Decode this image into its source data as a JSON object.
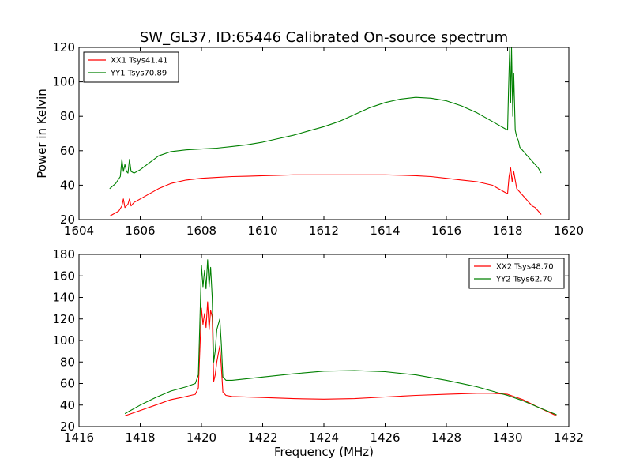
{
  "figure": {
    "title": "SW_GL37, ID:65446 Calibrated On-source spectrum",
    "ylabel": "Power in Kelvin",
    "xlabel": "Frequency (MHz)"
  },
  "colors": {
    "xx": "#ff0000",
    "yy": "#008000"
  },
  "chart_data": [
    {
      "type": "line",
      "title": "SW_GL37, ID:65446 Calibrated On-source spectrum",
      "xlabel": "",
      "ylabel": "Power in Kelvin",
      "xlim": [
        1604,
        1620
      ],
      "ylim": [
        20,
        120
      ],
      "xticks": [
        1604,
        1606,
        1608,
        1610,
        1612,
        1614,
        1616,
        1618,
        1620
      ],
      "yticks": [
        20,
        40,
        60,
        80,
        100,
        120
      ],
      "grid": false,
      "legend_position": "top-left",
      "series": [
        {
          "name": "XX1 Tsys41.41",
          "color": "#ff0000",
          "x": [
            1605.0,
            1605.3,
            1605.4,
            1605.45,
            1605.5,
            1605.6,
            1605.65,
            1605.7,
            1605.8,
            1606.0,
            1606.3,
            1606.6,
            1607.0,
            1607.5,
            1608.0,
            1608.5,
            1609.0,
            1609.5,
            1610.0,
            1610.5,
            1611.0,
            1611.5,
            1612.0,
            1612.5,
            1613.0,
            1613.5,
            1614.0,
            1614.5,
            1615.0,
            1615.5,
            1616.0,
            1616.5,
            1617.0,
            1617.5,
            1617.9,
            1618.0,
            1618.05,
            1618.1,
            1618.15,
            1618.2,
            1618.3,
            1618.4,
            1618.5,
            1618.6,
            1618.7,
            1618.8,
            1618.9,
            1619.0,
            1619.1
          ],
          "y": [
            22,
            25,
            28,
            32,
            27,
            29,
            32,
            28,
            30,
            32,
            35,
            38,
            41,
            43,
            44,
            44.5,
            45,
            45.2,
            45.5,
            45.7,
            46,
            46,
            46,
            46,
            46,
            46,
            46,
            45.8,
            45.5,
            45,
            44,
            43,
            42,
            40,
            36,
            35,
            45,
            50,
            42,
            48,
            38,
            36,
            34,
            32,
            30,
            28,
            27,
            25,
            23
          ]
        },
        {
          "name": "YY1 Tsys70.89",
          "color": "#008000",
          "x": [
            1605.0,
            1605.2,
            1605.35,
            1605.4,
            1605.45,
            1605.5,
            1605.55,
            1605.6,
            1605.65,
            1605.7,
            1605.8,
            1606.0,
            1606.3,
            1606.6,
            1607.0,
            1607.5,
            1608.0,
            1608.5,
            1609.0,
            1609.5,
            1610.0,
            1610.5,
            1611.0,
            1611.5,
            1612.0,
            1612.5,
            1613.0,
            1613.5,
            1614.0,
            1614.5,
            1615.0,
            1615.5,
            1616.0,
            1616.5,
            1617.0,
            1617.5,
            1617.9,
            1618.0,
            1618.03,
            1618.07,
            1618.1,
            1618.13,
            1618.17,
            1618.2,
            1618.25,
            1618.3,
            1618.35,
            1618.4,
            1618.5,
            1618.6,
            1618.7,
            1618.8,
            1618.9,
            1619.0,
            1619.1
          ],
          "y": [
            38,
            41,
            45,
            55,
            48,
            52,
            48,
            47,
            55,
            48,
            47,
            49,
            53,
            57,
            59.5,
            60.5,
            61,
            61.5,
            62.5,
            63.5,
            65,
            67,
            69,
            71.5,
            74,
            77,
            81,
            85,
            88,
            90,
            91,
            90.5,
            89,
            86,
            82,
            77,
            73,
            72,
            95,
            120,
            88,
            120,
            80,
            105,
            72,
            68,
            66,
            62,
            60,
            58,
            56,
            54,
            52,
            50,
            47
          ]
        }
      ]
    },
    {
      "type": "line",
      "title": "",
      "xlabel": "Frequency (MHz)",
      "ylabel": "",
      "xlim": [
        1416,
        1432
      ],
      "ylim": [
        20,
        180
      ],
      "xticks": [
        1416,
        1418,
        1420,
        1422,
        1424,
        1426,
        1428,
        1430,
        1432
      ],
      "yticks": [
        20,
        40,
        60,
        80,
        100,
        120,
        140,
        160,
        180
      ],
      "grid": false,
      "legend_position": "top-right",
      "series": [
        {
          "name": "XX2 Tsys48.70",
          "color": "#ff0000",
          "x": [
            1417.5,
            1418.0,
            1418.5,
            1419.0,
            1419.5,
            1419.8,
            1419.9,
            1420.0,
            1420.05,
            1420.1,
            1420.15,
            1420.2,
            1420.25,
            1420.3,
            1420.35,
            1420.4,
            1420.45,
            1420.5,
            1420.6,
            1420.65,
            1420.7,
            1420.8,
            1421.0,
            1422.0,
            1423.0,
            1424.0,
            1425.0,
            1426.0,
            1427.0,
            1428.0,
            1429.0,
            1429.5,
            1430.0,
            1430.5,
            1431.0,
            1431.6
          ],
          "y": [
            30,
            35,
            40,
            45,
            48,
            50,
            56,
            130,
            115,
            125,
            112,
            136,
            110,
            128,
            122,
            62,
            68,
            80,
            95,
            75,
            52,
            49,
            48,
            47,
            46,
            45.5,
            46,
            47.5,
            49,
            50,
            51,
            51,
            50,
            45,
            38,
            30
          ]
        },
        {
          "name": "YY2 Tsys62.70",
          "color": "#008000",
          "x": [
            1417.5,
            1418.0,
            1418.5,
            1419.0,
            1419.5,
            1419.8,
            1419.9,
            1420.0,
            1420.05,
            1420.1,
            1420.15,
            1420.2,
            1420.25,
            1420.3,
            1420.35,
            1420.4,
            1420.45,
            1420.5,
            1420.6,
            1420.65,
            1420.7,
            1420.8,
            1421.0,
            1422.0,
            1423.0,
            1424.0,
            1425.0,
            1426.0,
            1427.0,
            1428.0,
            1429.0,
            1430.0,
            1430.5,
            1431.0,
            1431.6
          ],
          "y": [
            32,
            40,
            47,
            53,
            57,
            60,
            68,
            170,
            150,
            165,
            148,
            175,
            150,
            168,
            140,
            80,
            90,
            110,
            120,
            96,
            66,
            63,
            63,
            66,
            69,
            71.5,
            72,
            71,
            68,
            63,
            57,
            49,
            44,
            38,
            31
          ]
        }
      ]
    }
  ]
}
